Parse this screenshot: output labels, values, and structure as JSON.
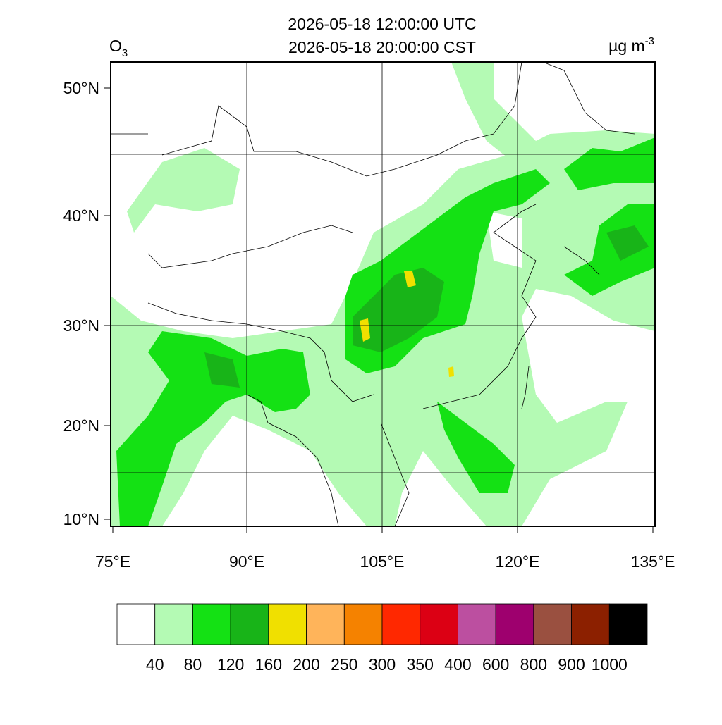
{
  "header": {
    "title_lines": [
      "2026-05-18 12:00:00 UTC",
      "2026-05-18 20:00:00 CST"
    ],
    "variable": {
      "base": "O",
      "subscript": "3"
    },
    "units": {
      "base": "µg m",
      "superscript": "-3"
    }
  },
  "map": {
    "lat_labels": [
      "50°N",
      "40°N",
      "30°N",
      "20°N",
      "10°N"
    ],
    "lon_labels": [
      "75°E",
      "90°E",
      "105°E",
      "120°E",
      "135°E"
    ]
  },
  "colorbar": {
    "colors": [
      "#ffffff",
      "#b4fab4",
      "#14e114",
      "#18b418",
      "#f0e000",
      "#ffb45a",
      "#f58200",
      "#ff2800",
      "#dc0014",
      "#bc4fa0",
      "#9e006e",
      "#9a5040",
      "#8c2000",
      "#000000"
    ],
    "labels": [
      "40",
      "80",
      "120",
      "160",
      "200",
      "250",
      "300",
      "350",
      "400",
      "600",
      "800",
      "900",
      "1000"
    ]
  }
}
